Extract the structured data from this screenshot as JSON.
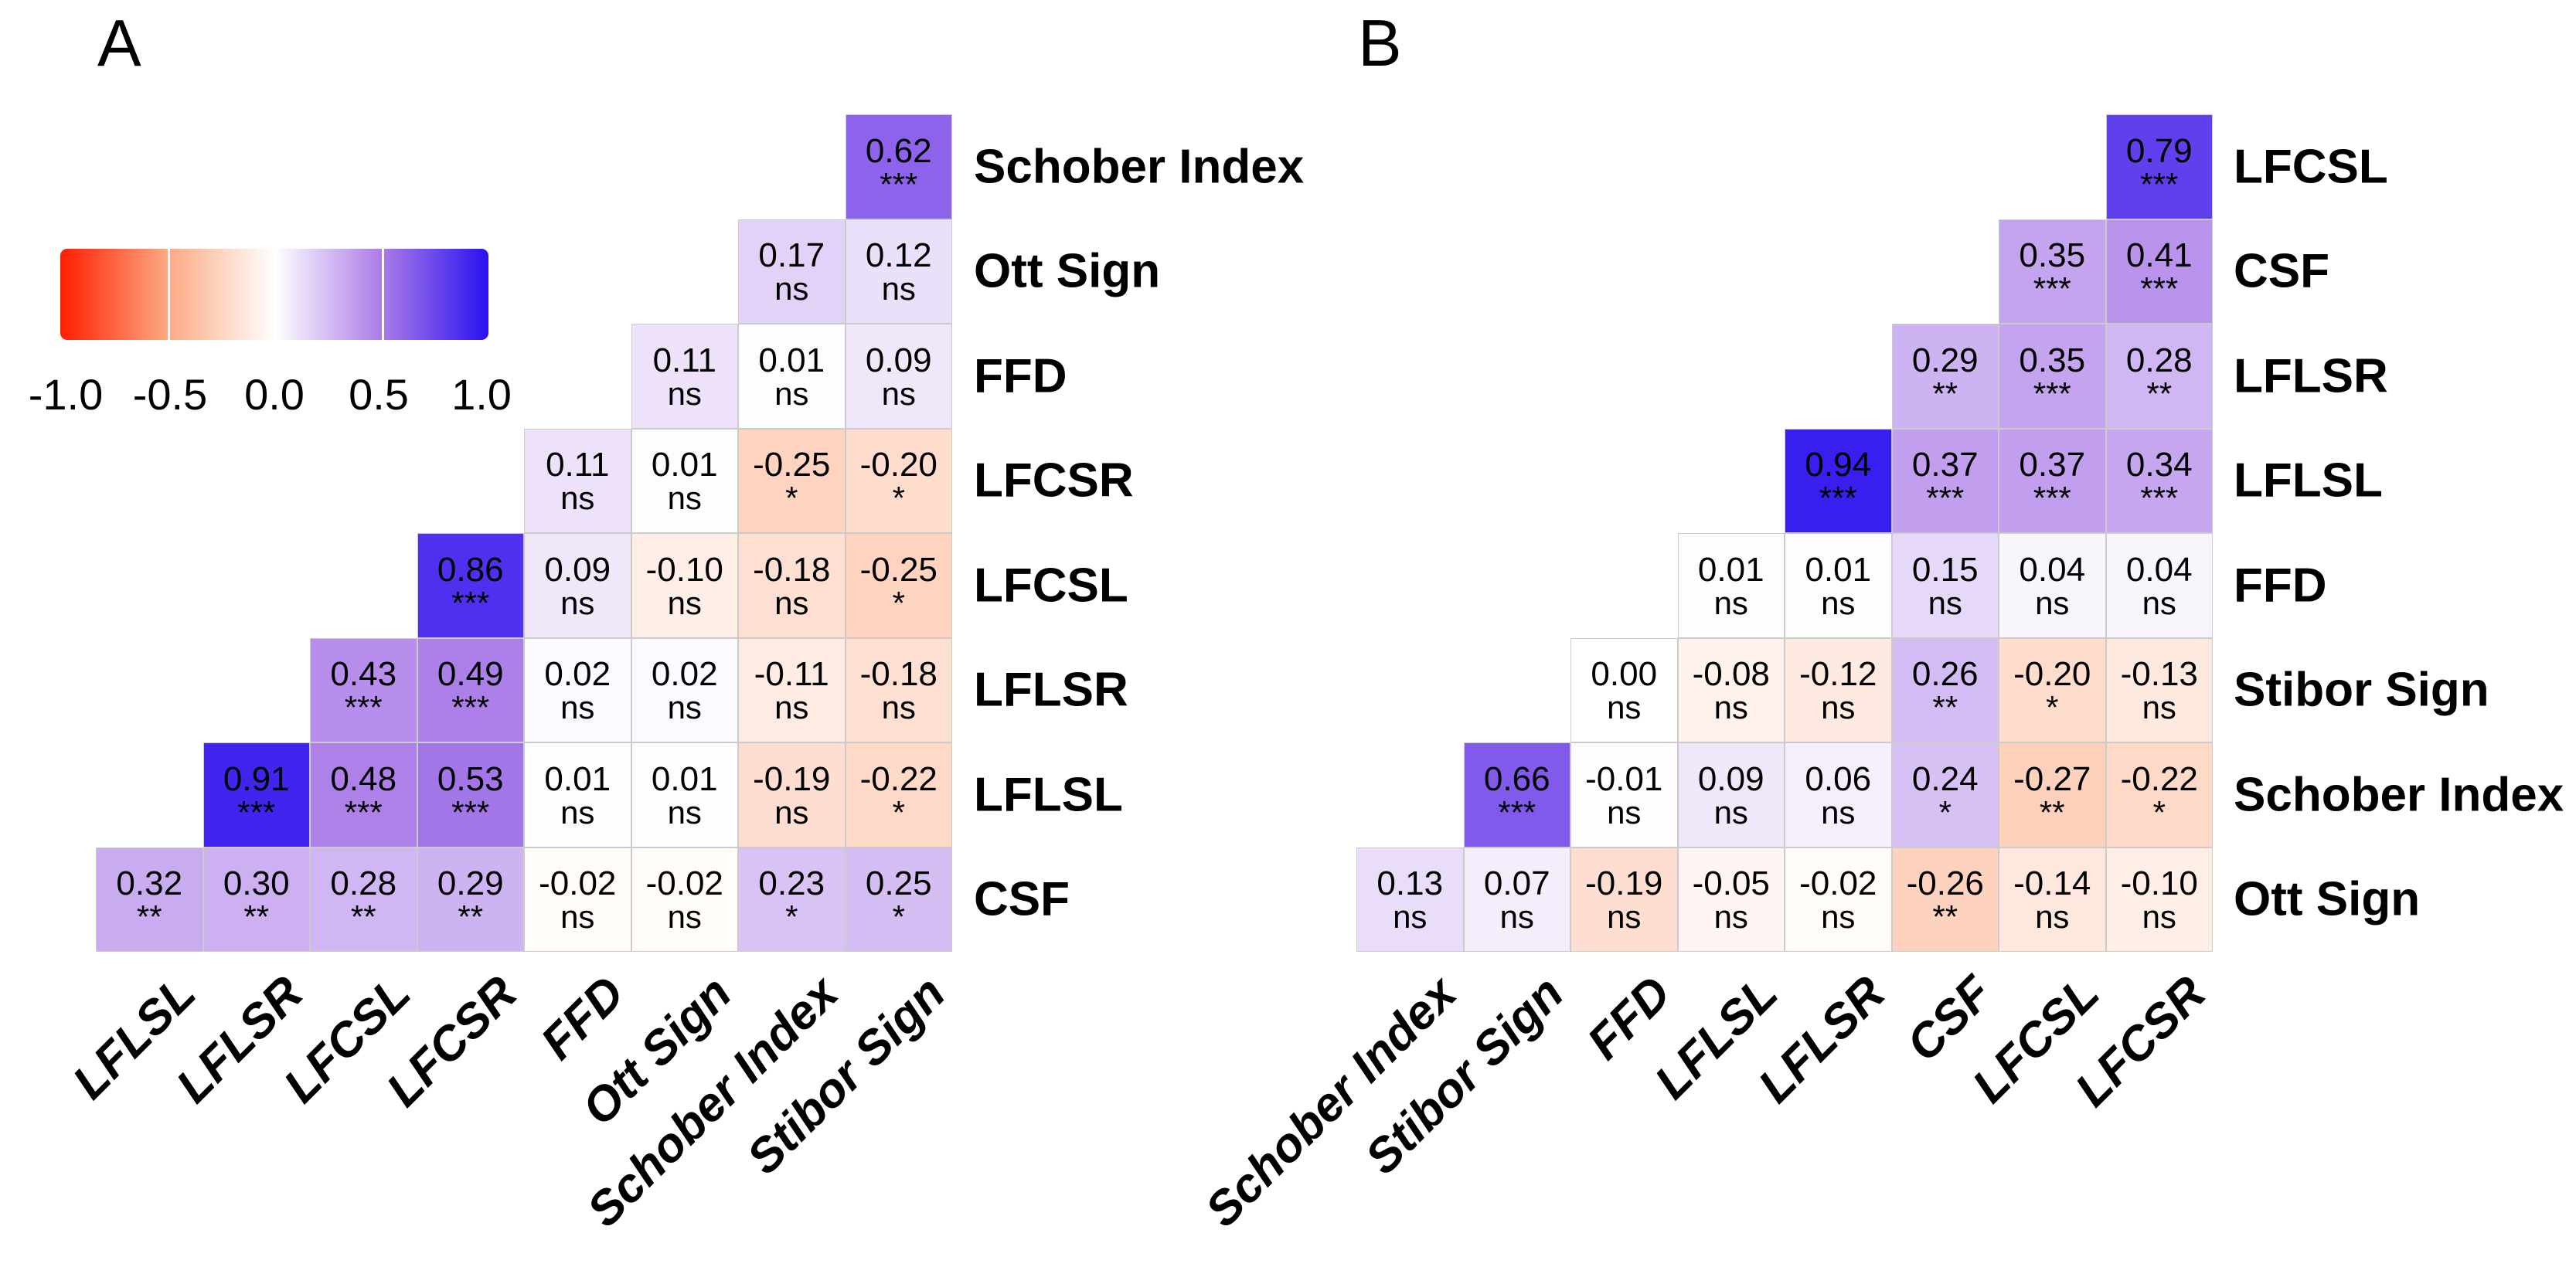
{
  "legend": {
    "ticks": [
      "-1.0",
      "-0.5",
      "0.0",
      "0.5",
      "1.0"
    ],
    "range": [
      -1,
      1
    ],
    "gradient": [
      "#ff1e00",
      "#fca982",
      "#ffffff",
      "#ab7ce8",
      "#2a12f0"
    ]
  },
  "chart_data": [
    {
      "type": "heatmap",
      "panel_label": "A",
      "layout_note": "upper-right triangular correlation matrix; each row's values occupy the last N columns",
      "columns": [
        "LFLSL",
        "LFLSR",
        "LFCSL",
        "LFCSR",
        "FFD",
        "Ott Sign",
        "Schober Index",
        "Stibor Sign"
      ],
      "rows": [
        {
          "label": "Schober Index",
          "values": [
            "0.62"
          ],
          "sig": [
            "***"
          ]
        },
        {
          "label": "Ott Sign",
          "values": [
            "0.17",
            "0.12"
          ],
          "sig": [
            "ns",
            "ns"
          ]
        },
        {
          "label": "FFD",
          "values": [
            "0.11",
            "0.01",
            "0.09"
          ],
          "sig": [
            "ns",
            "ns",
            "ns"
          ]
        },
        {
          "label": "LFCSR",
          "values": [
            "0.11",
            "0.01",
            "-0.25",
            "-0.20"
          ],
          "sig": [
            "ns",
            "ns",
            "*",
            "*"
          ]
        },
        {
          "label": "LFCSL",
          "values": [
            "0.86",
            "0.09",
            "-0.10",
            "-0.18",
            "-0.25"
          ],
          "sig": [
            "***",
            "ns",
            "ns",
            "ns",
            "*"
          ]
        },
        {
          "label": "LFLSR",
          "values": [
            "0.43",
            "0.49",
            "0.02",
            "0.02",
            "-0.11",
            "-0.18"
          ],
          "sig": [
            "***",
            "***",
            "ns",
            "ns",
            "ns",
            "ns"
          ]
        },
        {
          "label": "LFLSL",
          "values": [
            "0.91",
            "0.48",
            "0.53",
            "0.01",
            "0.01",
            "-0.19",
            "-0.22"
          ],
          "sig": [
            "***",
            "***",
            "***",
            "ns",
            "ns",
            "ns",
            "*"
          ]
        },
        {
          "label": "CSF",
          "values": [
            "0.32",
            "0.30",
            "0.28",
            "0.29",
            "-0.02",
            "-0.02",
            "0.23",
            "0.25"
          ],
          "sig": [
            "**",
            "**",
            "**",
            "**",
            "ns",
            "ns",
            "*",
            "*"
          ]
        }
      ]
    },
    {
      "type": "heatmap",
      "panel_label": "B",
      "layout_note": "upper-right triangular correlation matrix; each row's values occupy the last N columns",
      "columns": [
        "Schober Index",
        "Stibor Sign",
        "FFD",
        "LFLSL",
        "LFLSR",
        "CSF",
        "LFCSL",
        "LFCSR"
      ],
      "rows": [
        {
          "label": "LFCSL",
          "values": [
            "0.79"
          ],
          "sig": [
            "***"
          ]
        },
        {
          "label": "CSF",
          "values": [
            "0.35",
            "0.41"
          ],
          "sig": [
            "***",
            "***"
          ]
        },
        {
          "label": "LFLSR",
          "values": [
            "0.29",
            "0.35",
            "0.28"
          ],
          "sig": [
            "**",
            "***",
            "**"
          ]
        },
        {
          "label": "LFLSL",
          "values": [
            "0.94",
            "0.37",
            "0.37",
            "0.34"
          ],
          "sig": [
            "***",
            "***",
            "***",
            "***"
          ]
        },
        {
          "label": "FFD",
          "values": [
            "0.01",
            "0.01",
            "0.15",
            "0.04",
            "0.04"
          ],
          "sig": [
            "ns",
            "ns",
            "ns",
            "ns",
            "ns"
          ]
        },
        {
          "label": "Stibor Sign",
          "values": [
            "0.00",
            "-0.08",
            "-0.12",
            "0.26",
            "-0.20",
            "-0.13"
          ],
          "sig": [
            "ns",
            "ns",
            "ns",
            "**",
            "*",
            "ns"
          ]
        },
        {
          "label": "Schober Index",
          "values": [
            "0.66",
            "-0.01",
            "0.09",
            "0.06",
            "0.24",
            "-0.27",
            "-0.22"
          ],
          "sig": [
            "***",
            "ns",
            "ns",
            "ns",
            "*",
            "**",
            "*"
          ]
        },
        {
          "label": "Ott Sign",
          "values": [
            "0.13",
            "0.07",
            "-0.19",
            "-0.05",
            "-0.02",
            "-0.26",
            "-0.14",
            "-0.10"
          ],
          "sig": [
            "ns",
            "ns",
            "ns",
            "ns",
            "ns",
            "**",
            "ns",
            "ns"
          ]
        }
      ]
    }
  ]
}
